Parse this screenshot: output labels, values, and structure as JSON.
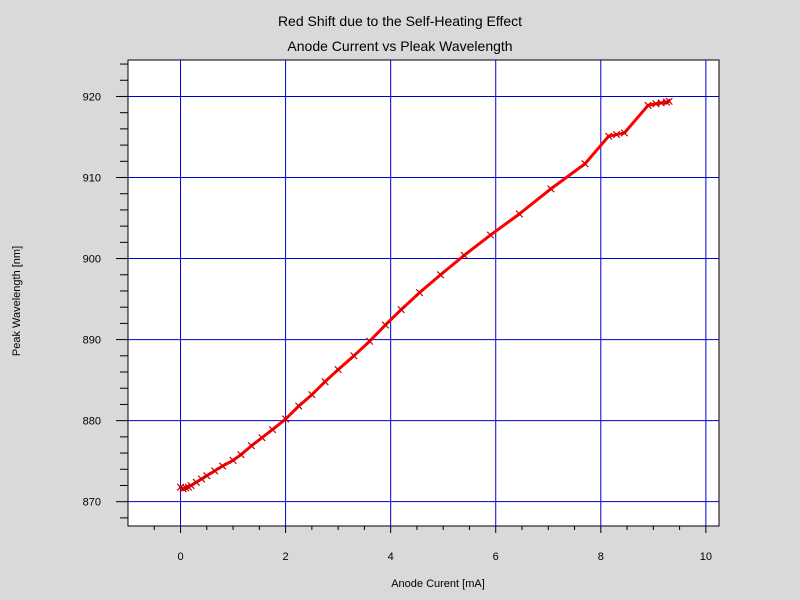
{
  "chart_data": {
    "type": "line",
    "title": "Red Shift due to the Self-Heating Effect",
    "subtitle": "Anode Current vs Pleak Wavelength",
    "xlabel": "Anode Curent [mA]",
    "ylabel": "Peak Wavelength [nm]",
    "xlim": [
      -1,
      10.25
    ],
    "ylim": [
      867,
      924.5
    ],
    "xticks": [
      0,
      2,
      4,
      6,
      8,
      10
    ],
    "yticks": [
      870,
      880,
      890,
      900,
      910,
      920
    ],
    "grid": true,
    "marker": "x",
    "colors": {
      "background": "#d9d9d9",
      "plot_background": "#ffffff",
      "grid": "#0000cc",
      "line": "#ff0000",
      "marker": "#cc0000",
      "axis": "#000000"
    },
    "series": [
      {
        "x": [
          0.0,
          0.05,
          0.1,
          0.15,
          0.2,
          0.3,
          0.4,
          0.5,
          0.65,
          0.8,
          1.0,
          1.15,
          1.35,
          1.55,
          1.75,
          2.0,
          2.25,
          2.5,
          2.75,
          3.0,
          3.3,
          3.6,
          3.9,
          4.2,
          4.55,
          4.95,
          5.4,
          5.9,
          6.45,
          7.05,
          7.7,
          8.15,
          8.3,
          8.45,
          8.9,
          9.05,
          9.15,
          9.25,
          9.3
        ],
        "y": [
          871.8,
          871.6,
          871.7,
          871.8,
          872.0,
          872.4,
          872.8,
          873.2,
          873.8,
          874.4,
          875.1,
          875.8,
          876.9,
          877.9,
          878.9,
          880.2,
          881.8,
          883.2,
          884.8,
          886.3,
          888.0,
          889.8,
          891.8,
          893.7,
          895.8,
          898.0,
          900.4,
          902.9,
          905.5,
          908.6,
          911.7,
          915.1,
          915.3,
          915.5,
          918.9,
          919.1,
          919.2,
          919.3,
          919.4
        ]
      }
    ]
  }
}
